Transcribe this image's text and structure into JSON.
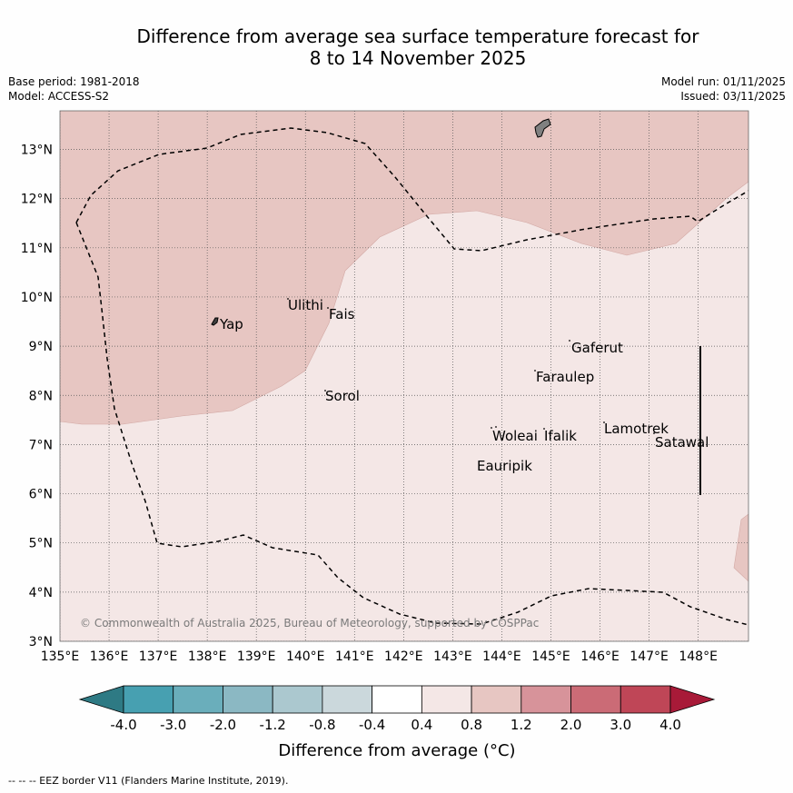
{
  "header": {
    "title_line1": "Difference from average sea surface temperature forecast for",
    "title_line2": "8 to 14 November 2025",
    "base_period": "Base period: 1981-2018",
    "model": "Model: ACCESS-S2",
    "model_run": "Model run: 01/11/2025",
    "issued": "Issued: 03/11/2025"
  },
  "map": {
    "lon_ticks": [
      "135°E",
      "136°E",
      "137°E",
      "138°E",
      "139°E",
      "140°E",
      "141°E",
      "142°E",
      "143°E",
      "144°E",
      "145°E",
      "146°E",
      "147°E",
      "148°E"
    ],
    "lat_ticks": [
      "3°N",
      "4°N",
      "5°N",
      "6°N",
      "7°N",
      "8°N",
      "9°N",
      "10°N",
      "11°N",
      "12°N",
      "13°N"
    ],
    "places": [
      "Yap",
      "Ulithi",
      "Fais",
      "Gaferut",
      "Faraulep",
      "Sorol",
      "Woleai",
      "Ifalik",
      "Lamotrek",
      "Satawal",
      "Eauripik"
    ],
    "copyright": "© Commonwealth of Australia 2025, Bureau of Meteorology, supported by COSPPac",
    "colors": {
      "warm_1": "#e7c6c2",
      "warm_0": "#f4e7e6",
      "land": "#808080",
      "border": "#000000"
    }
  },
  "colorbar": {
    "ticks": [
      "-4.0",
      "-3.0",
      "-2.0",
      "-1.2",
      "-0.8",
      "-0.4",
      "0.4",
      "0.8",
      "1.2",
      "2.0",
      "3.0",
      "4.0"
    ],
    "colors": [
      "#2e7a84",
      "#47a0b1",
      "#6aaebb",
      "#8bb8c3",
      "#abc8cf",
      "#cbd8dc",
      "#ffffff",
      "#f4e7e6",
      "#e7c6c2",
      "#d7939a",
      "#cb6b76",
      "#bf4657",
      "#a81a38"
    ],
    "label": "Difference from average (°C)"
  },
  "footer": {
    "eez_legend": "-- -- -- EEZ border V11 (Flanders Marine Institute, 2019)."
  }
}
